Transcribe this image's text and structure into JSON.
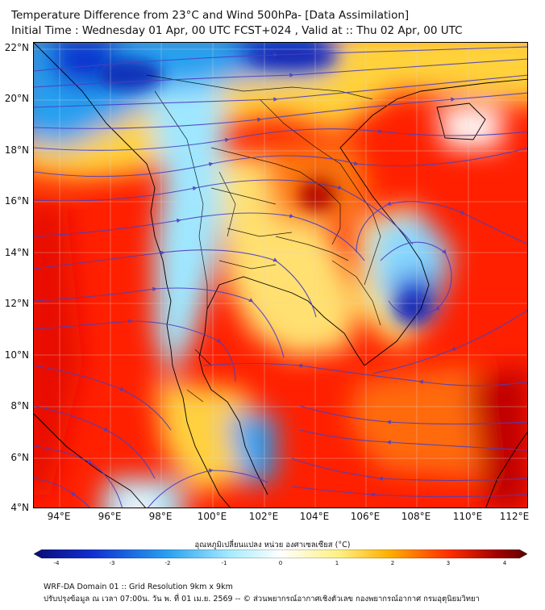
{
  "header": {
    "title_line1": "Temperature Difference from 23°C and Wind 500hPa- [Data Assimilation]",
    "title_line2": "Initial Time : Wednesday 01 Apr, 00 UTC FCST+024 , Valid at ::  Thu 02 Apr, 00 UTC"
  },
  "map": {
    "lat_labels": [
      "22°N",
      "20°N",
      "18°N",
      "16°N",
      "14°N",
      "12°N",
      "10°N",
      "8°N",
      "6°N",
      "4°N"
    ],
    "lon_labels": [
      "94°E",
      "96°E",
      "98°E",
      "100°E",
      "102°E",
      "104°E",
      "106°E",
      "108°E",
      "110°E",
      "112°E"
    ],
    "colors": {
      "cold": "#1030c8",
      "cool": "#30b0f0",
      "neutral": "#f0fff8",
      "warm": "#fff060",
      "hot": "#ff2000",
      "very_hot": "#b00000",
      "streamline": "#4b3fc0"
    }
  },
  "colorbar": {
    "label": "อุณหภูมิเปลี่ยนแปลง หน่วย องศาเซลเซียส (°C)",
    "ticks": [
      "-4",
      "-3",
      "-2",
      "-1",
      "0",
      "1",
      "2",
      "3",
      "4"
    ],
    "gradient": [
      "#0a0a78",
      "#1030d0",
      "#28a0f0",
      "#a8ecff",
      "#ffffff",
      "#fff080",
      "#ffb000",
      "#ff3000",
      "#a00000",
      "#600000"
    ]
  },
  "footer": {
    "line1": "WRF-DA Domain 01 :: Grid Resolution 9km x 9km",
    "line2": "ปรับปรุงข้อมูล ณ เวลา 07:00น. วัน พ. ที่ 01 เม.ย. 2569 -- © ส่วนพยากรณ์อากาศเชิงตัวเลข กองพยากรณ์อากาศ กรมอุตุนิยมวิทยา"
  }
}
